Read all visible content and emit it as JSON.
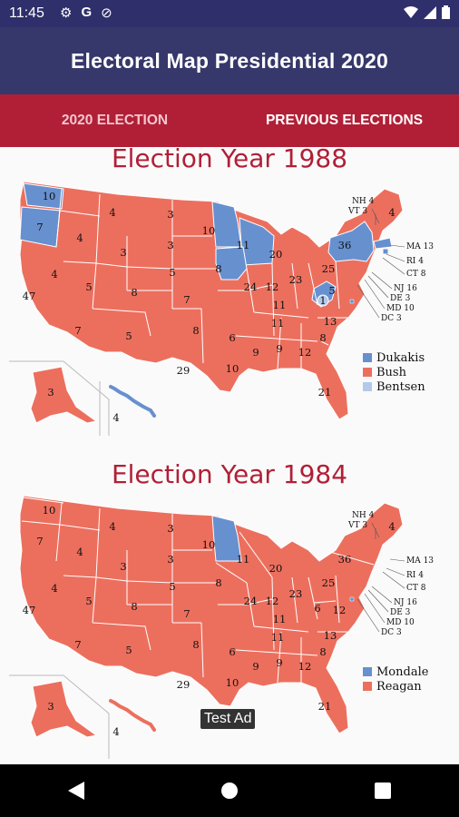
{
  "status_bar": {
    "time": "11:45",
    "left_icons": [
      "gear-icon",
      "google-icon",
      "no-data-icon"
    ],
    "right_icons": [
      "wifi-icon",
      "signal-icon",
      "battery-icon"
    ]
  },
  "app_bar": {
    "title": "Electoral Map Presidential 2020"
  },
  "tabs": [
    {
      "label": "2020 ELECTION",
      "active": false
    },
    {
      "label": "PREVIOUS ELECTIONS",
      "active": true
    }
  ],
  "colors": {
    "republican": "#ec6f5e",
    "democrat": "#6790cf",
    "other": "#b4c9ea",
    "accent": "#b11f36",
    "app_bar": "#36386b"
  },
  "maps": [
    {
      "title": "Election Year 1988",
      "legend": [
        {
          "label": "Dukakis",
          "color": "#6790cf"
        },
        {
          "label": "Bush",
          "color": "#ec6f5e"
        },
        {
          "label": "Bentsen",
          "color": "#b4c9ea"
        }
      ],
      "callouts": [
        "NH 4",
        "VT 3",
        "MA 13",
        "RI 4",
        "CT 8",
        "NJ 16",
        "DE 3",
        "MD 10",
        "DC 3"
      ],
      "state_values": [
        "10",
        "7",
        "4",
        "4",
        "3",
        "47",
        "4",
        "5",
        "8",
        "3",
        "3",
        "5",
        "10",
        "8",
        "11",
        "4",
        "20",
        "36",
        "24",
        "12",
        "23",
        "25",
        "5",
        "1",
        "11",
        "13",
        "7",
        "5",
        "8",
        "7",
        "6",
        "9",
        "12",
        "8",
        "29",
        "10",
        "21",
        "3",
        "4",
        "9",
        "12",
        "11"
      ]
    },
    {
      "title": "Election Year 1984",
      "legend": [
        {
          "label": "Mondale",
          "color": "#6790cf"
        },
        {
          "label": "Reagan",
          "color": "#ec6f5e"
        }
      ],
      "callouts": [
        "NH 4",
        "VT 3",
        "MA 13",
        "RI 4",
        "CT 8",
        "NJ 16",
        "DE 3",
        "MD 10",
        "DC 3"
      ],
      "state_values": [
        "10",
        "7",
        "4",
        "4",
        "3",
        "47",
        "4",
        "5",
        "8",
        "3",
        "3",
        "5",
        "10",
        "8",
        "11",
        "4",
        "20",
        "36",
        "24",
        "12",
        "23",
        "25",
        "6",
        "12",
        "11",
        "13",
        "7",
        "5",
        "8",
        "7",
        "6",
        "9",
        "12",
        "8",
        "29",
        "10",
        "21",
        "3",
        "4",
        "9",
        "12",
        "11"
      ]
    }
  ],
  "ad_badge": "Test Ad"
}
